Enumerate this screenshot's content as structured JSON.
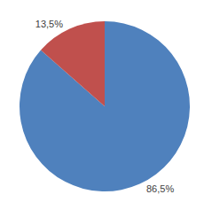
{
  "chart_data": {
    "type": "pie",
    "values": [
      86.5,
      13.5
    ],
    "value_labels": [
      "86,5%",
      "13,5%"
    ],
    "colors": [
      "#4f81bd",
      "#c0504d"
    ],
    "data_labels": true
  }
}
